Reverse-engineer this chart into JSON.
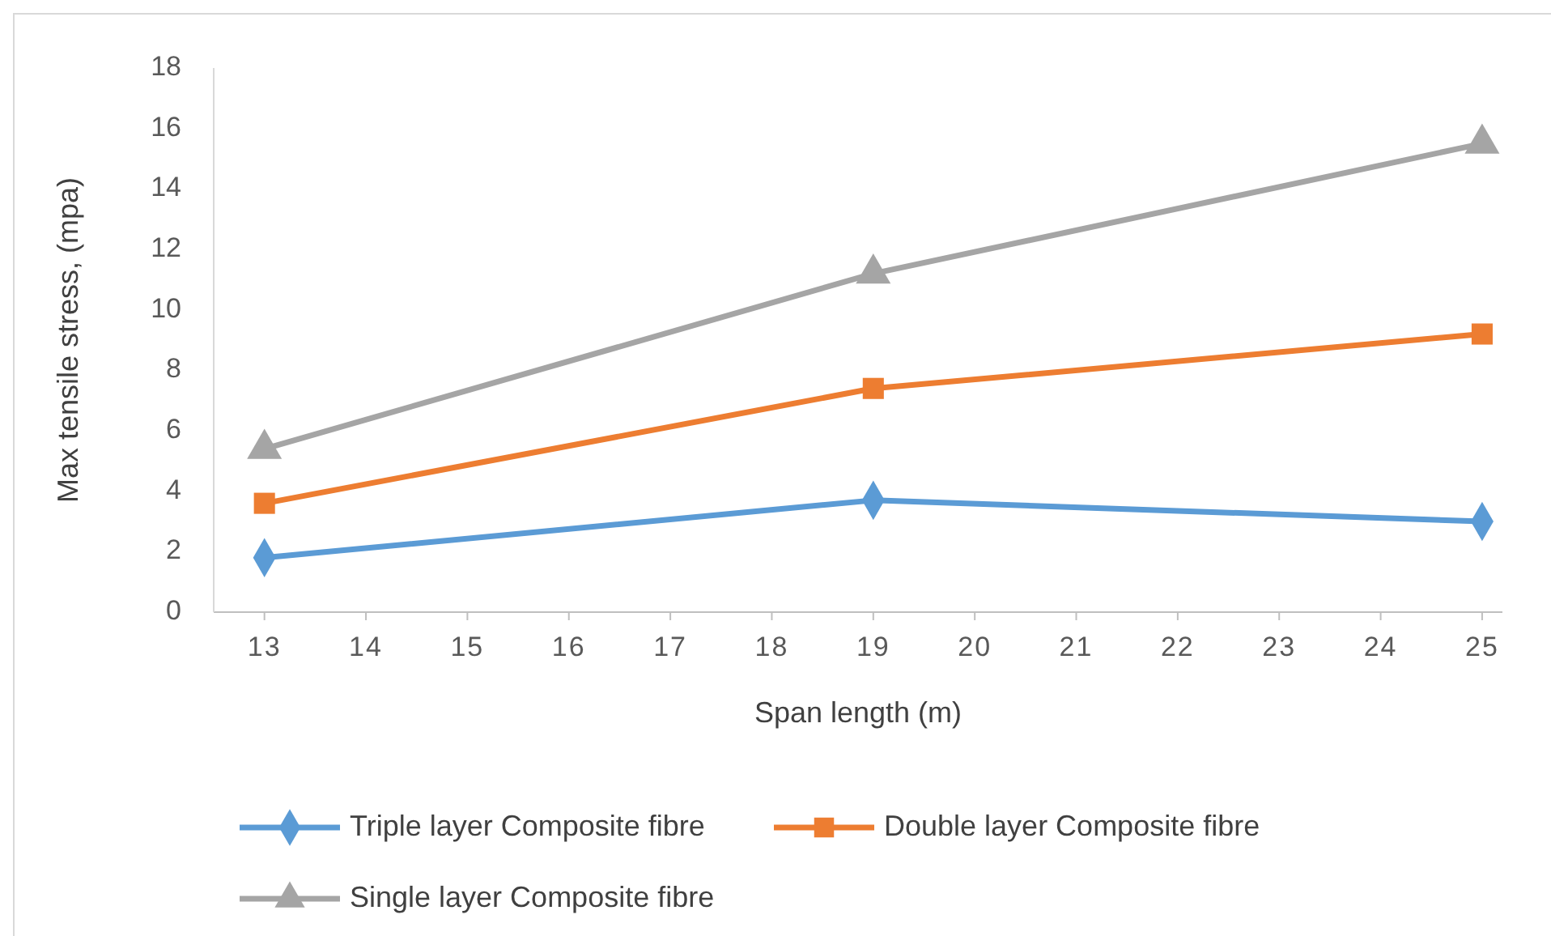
{
  "chart_data": {
    "type": "line",
    "xlabel": "Span length (m)",
    "ylabel": "Max tensile stress, (mpa)",
    "x": [
      13,
      19,
      25
    ],
    "xlim": [
      12.5,
      25.2
    ],
    "xticks": [
      13,
      14,
      15,
      16,
      17,
      18,
      19,
      20,
      21,
      22,
      23,
      24,
      25
    ],
    "ylim": [
      0,
      18
    ],
    "yticks": [
      0,
      2,
      4,
      6,
      8,
      10,
      12,
      14,
      16,
      18
    ],
    "grid": false,
    "legend": "bottom",
    "line_style": "solid",
    "series": [
      {
        "name": "Triple layer Composite fibre",
        "color": "#5b9bd5",
        "marker": "diamond",
        "values": [
          1.8,
          3.7,
          3.0
        ]
      },
      {
        "name": "Double layer Composite fibre",
        "color": "#ed7d31",
        "marker": "square",
        "values": [
          3.6,
          7.4,
          9.2
        ]
      },
      {
        "name": "Single layer Composite fibre",
        "color": "#a5a5a5",
        "marker": "triangle",
        "values": [
          5.4,
          11.2,
          15.5
        ]
      }
    ]
  }
}
